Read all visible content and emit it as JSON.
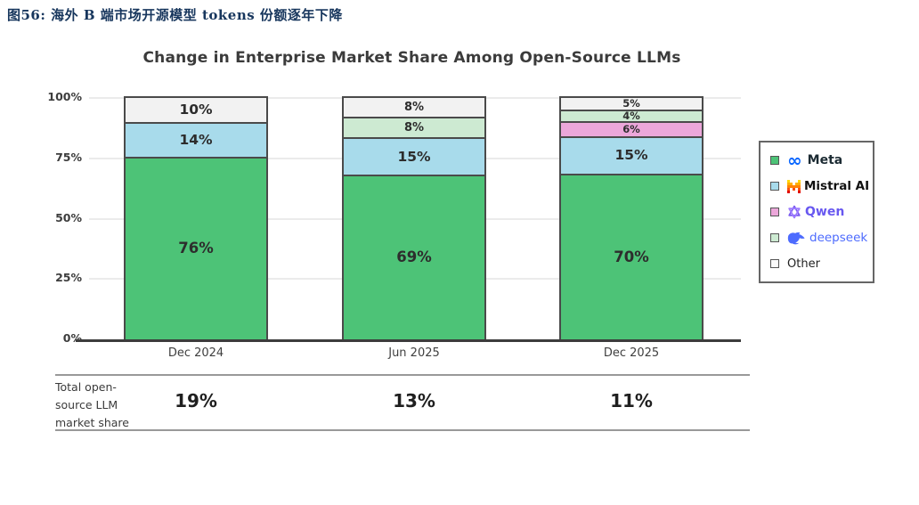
{
  "page": {
    "figure_caption": "图56:  海外 B 端市场开源模型 tokens 份额逐年下降",
    "caption_color": "#17365D"
  },
  "chart_data": {
    "type": "bar",
    "stacked": true,
    "title": "Change in Enterprise Market Share Among Open-Source LLMs",
    "categories": [
      "Dec 2024",
      "Jun 2025",
      "Dec 2025"
    ],
    "series": [
      {
        "name": "Meta",
        "color": "#4DC377",
        "values": [
          76,
          69,
          70
        ]
      },
      {
        "name": "Mistral AI",
        "color": "#A8DBEB",
        "values": [
          14,
          15,
          15
        ]
      },
      {
        "name": "Qwen",
        "color": "#ECA7DA",
        "values": [
          0,
          0,
          6
        ]
      },
      {
        "name": "deepseek",
        "color": "#CDEAD2",
        "values": [
          0,
          8,
          4
        ]
      },
      {
        "name": "Other",
        "color": "#F2F2F2",
        "values": [
          10,
          8,
          5
        ]
      }
    ],
    "stack_order_bottom_to_top": [
      "Meta",
      "Mistral AI",
      "Qwen",
      "deepseek",
      "Other"
    ],
    "ylim": [
      0,
      100
    ],
    "yticks": [
      {
        "label": "0%",
        "value": 0
      },
      {
        "label": "25%",
        "value": 25
      },
      {
        "label": "50%",
        "value": 50
      },
      {
        "label": "75%",
        "value": 75
      },
      {
        "label": "100%",
        "value": 100
      }
    ],
    "grid": true,
    "legend_position": "right",
    "summary_row": {
      "label_lines": [
        "Total open-",
        "source LLM",
        "market share"
      ],
      "values": [
        "19%",
        "13%",
        "11%"
      ]
    }
  },
  "legend": {
    "entries": [
      {
        "label": "Meta",
        "icon": "meta-logo",
        "swatch_color": "#4DC377",
        "label_color": "#1C2B33",
        "label_weight": "600",
        "label_size": "14px"
      },
      {
        "label": "Mistral AI",
        "icon": "mistral-logo",
        "swatch_color": "#A8DBEB",
        "label_color": "#111111",
        "label_weight": "700",
        "label_size": "13.5px"
      },
      {
        "label": "Qwen",
        "icon": "qwen-logo",
        "swatch_color": "#ECA7DA",
        "label_color": "#6858F0",
        "label_weight": "700",
        "label_size": "14px"
      },
      {
        "label": "deepseek",
        "icon": "deepseek-logo",
        "swatch_color": "#CDEAD2",
        "label_color": "#4D6BFE",
        "label_weight": "500",
        "label_size": "13.5px"
      },
      {
        "label": "Other",
        "icon": null,
        "swatch_color": "#FBFBFB",
        "label_color": "#222222",
        "label_weight": "400",
        "label_size": "13px"
      }
    ]
  },
  "colors": {
    "segment_border": "#4A4A4A",
    "axis_line": "#3C3C3C",
    "gridline": "#EBEBEB",
    "rule": "#999999"
  }
}
